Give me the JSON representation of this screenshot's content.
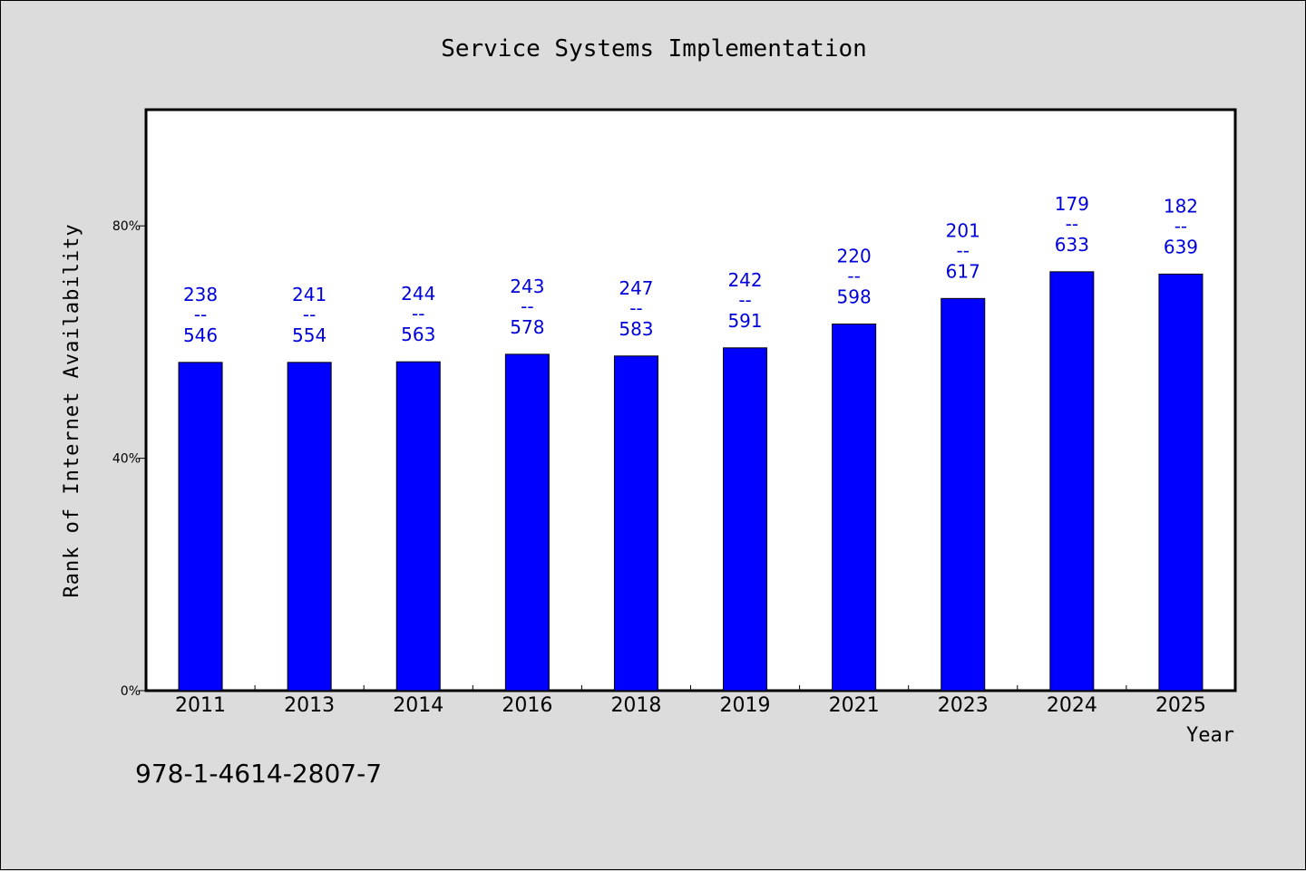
{
  "chart_data": {
    "type": "bar",
    "title": "Service Systems Implementation",
    "xlabel": "Year",
    "ylabel": "Rank of Internet Availability",
    "categories": [
      "2011",
      "2013",
      "2014",
      "2016",
      "2018",
      "2019",
      "2021",
      "2023",
      "2024",
      "2025"
    ],
    "values": [
      56.5,
      56.5,
      56.6,
      57.9,
      57.6,
      59.0,
      63.1,
      67.5,
      72.1,
      71.7
    ],
    "labels_top": [
      "238",
      "241",
      "244",
      "243",
      "247",
      "242",
      "220",
      "201",
      "179",
      "182"
    ],
    "labels_bottom": [
      "546",
      "554",
      "563",
      "578",
      "583",
      "591",
      "598",
      "617",
      "633",
      "639"
    ],
    "label_separator": "--",
    "ylim": [
      0,
      100
    ],
    "yticks": [
      0,
      40,
      80
    ],
    "ytick_labels": [
      "0%",
      "40%",
      "80%"
    ],
    "grid": false,
    "colors": {
      "bar": "#0000ff",
      "label": "#0000dd",
      "background": "#dcdcdc",
      "plot": "#ffffff"
    }
  },
  "footnote": "978-1-4614-2807-7"
}
